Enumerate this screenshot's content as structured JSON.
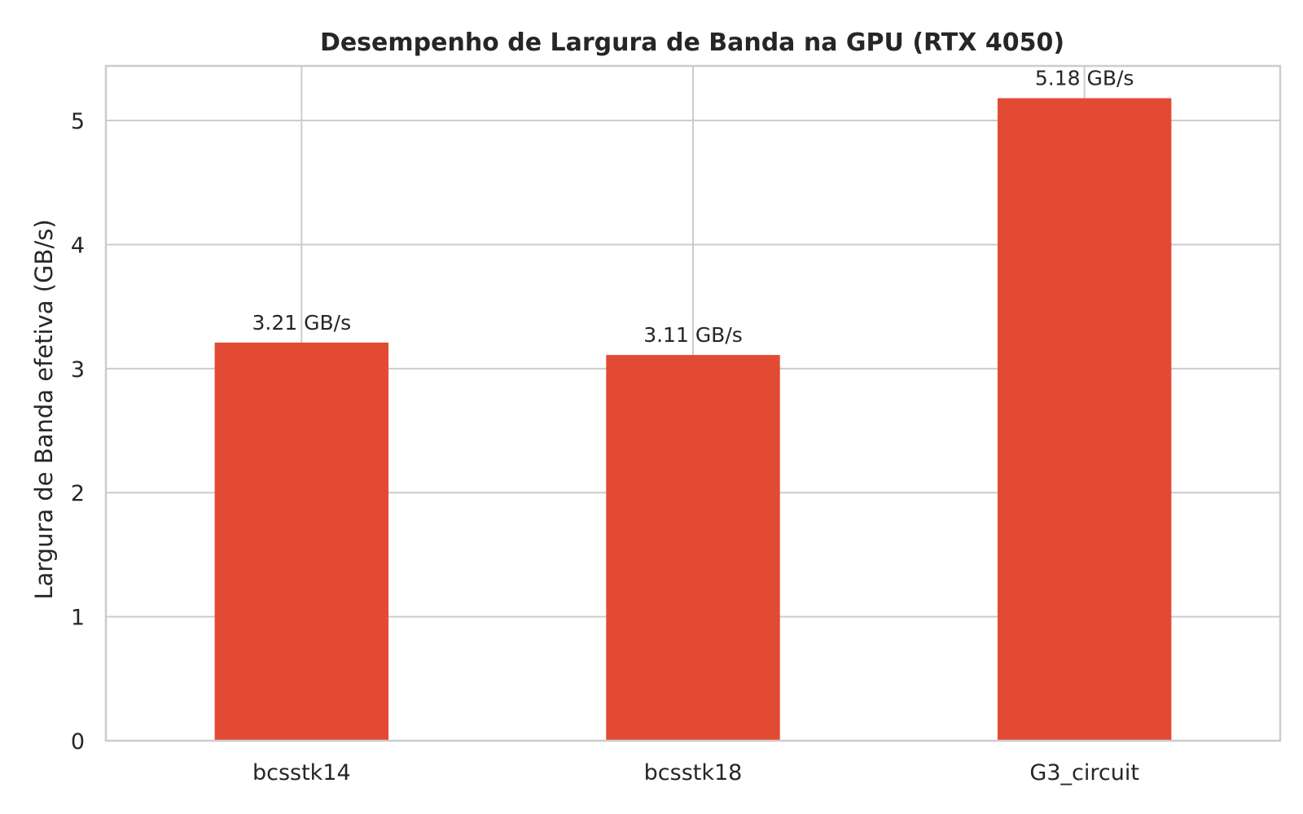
{
  "chart_data": {
    "type": "bar",
    "title": "Desempenho de Largura de Banda na GPU (RTX 4050)",
    "xlabel": "",
    "ylabel": "Largura de Banda efetiva (GB/s)",
    "categories": [
      "bcsstk14",
      "bcsstk18",
      "G3_circuit"
    ],
    "values": [
      3.21,
      3.11,
      5.18
    ],
    "data_labels": [
      "3.21 GB/s",
      "3.11 GB/s",
      "5.18 GB/s"
    ],
    "ylim": [
      0,
      5.44
    ],
    "yticks": [
      0,
      1,
      2,
      3,
      4,
      5
    ],
    "grid": true,
    "bar_color": "#e34a33",
    "grid_color": "#cccccc"
  }
}
